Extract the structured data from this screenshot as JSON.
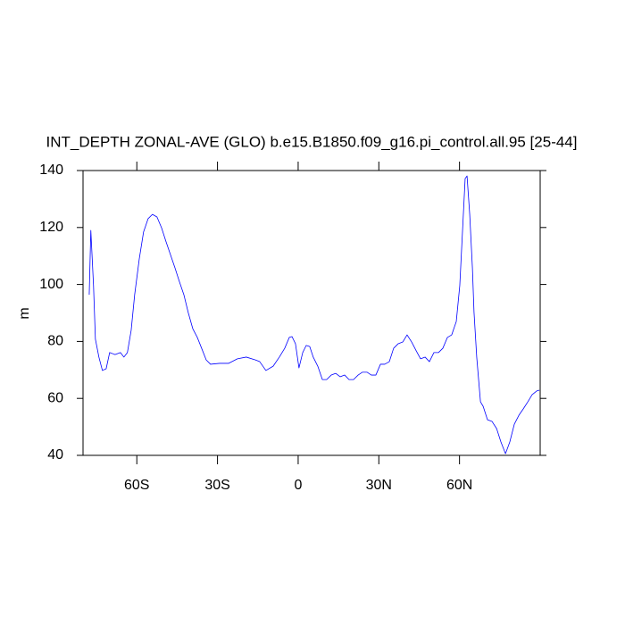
{
  "chart_data": {
    "type": "line",
    "title": "INT_DEPTH ZONAL-AVE (GLO) b.e15.B1850.f09_g16.pi_control.all.95 [25-44]",
    "y_label": "m",
    "x": [
      -77.7,
      -77.1,
      -76.1,
      -75.4,
      -74.1,
      -72.8,
      -71.4,
      -70.1,
      -68.1,
      -66.1,
      -64.8,
      -63.5,
      -62.1,
      -60.8,
      -59.1,
      -57.5,
      -55.8,
      -54.2,
      -52.5,
      -50.8,
      -49.2,
      -47.5,
      -45.8,
      -44.2,
      -42.5,
      -40.9,
      -39.2,
      -37.5,
      -35.9,
      -34.2,
      -32.6,
      -29.2,
      -25.9,
      -22.6,
      -19.3,
      -15.9,
      -14.3,
      -12.0,
      -9.3,
      -7.0,
      -5.0,
      -3.3,
      -2.3,
      -1.0,
      0.3,
      1.7,
      3.0,
      4.3,
      5.6,
      7.3,
      9.0,
      10.6,
      12.3,
      14.0,
      15.6,
      17.3,
      18.9,
      20.6,
      22.3,
      23.9,
      25.6,
      27.2,
      28.9,
      30.6,
      32.2,
      33.9,
      35.5,
      37.2,
      38.9,
      40.5,
      42.2,
      43.9,
      45.5,
      47.2,
      48.8,
      50.5,
      52.2,
      53.8,
      55.5,
      57.1,
      58.8,
      60.1,
      61.1,
      62.1,
      62.8,
      63.8,
      64.8,
      65.4,
      66.4,
      67.8,
      68.8,
      70.4,
      72.1,
      73.8,
      75.4,
      77.1,
      78.7,
      80.4,
      82.1,
      83.7,
      85.4,
      87.0,
      88.7,
      89.7
    ],
    "series": [
      {
        "name": "INT_DEPTH",
        "color": "#0000ff",
        "values": [
          96.4,
          119.0,
          99.6,
          80.8,
          74.5,
          69.8,
          70.4,
          76.1,
          75.4,
          76.1,
          74.5,
          76.1,
          83.9,
          96.4,
          108.9,
          118.4,
          123.1,
          124.6,
          123.7,
          119.9,
          115.2,
          110.5,
          105.8,
          101.1,
          96.4,
          90.2,
          84.5,
          81.4,
          77.6,
          73.5,
          72.0,
          72.3,
          72.3,
          73.9,
          74.5,
          73.5,
          72.9,
          69.8,
          71.3,
          74.5,
          77.6,
          81.4,
          81.7,
          79.2,
          70.7,
          76.1,
          78.6,
          78.2,
          74.5,
          71.3,
          66.6,
          66.6,
          68.2,
          68.8,
          67.6,
          68.2,
          66.6,
          66.6,
          68.2,
          69.2,
          69.2,
          68.2,
          68.2,
          72.0,
          72.0,
          72.9,
          77.6,
          79.2,
          79.8,
          82.3,
          79.8,
          76.7,
          73.9,
          74.5,
          72.9,
          76.1,
          76.1,
          77.6,
          81.4,
          82.3,
          87.0,
          99.6,
          118.4,
          137.2,
          138.1,
          124.6,
          105.8,
          90.2,
          74.5,
          58.8,
          57.2,
          52.5,
          51.9,
          49.4,
          44.7,
          40.6,
          44.7,
          51.0,
          54.1,
          56.3,
          58.8,
          61.3,
          62.6,
          62.9
        ]
      }
    ],
    "xlim": [
      -80,
      90
    ],
    "xticks": [
      {
        "value": -60,
        "label": "60S"
      },
      {
        "value": -30,
        "label": "30S"
      },
      0,
      {
        "value": 30,
        "label": "30N"
      },
      {
        "value": 60,
        "label": "60N"
      }
    ],
    "ylim": [
      40,
      140
    ],
    "yticks": [
      40,
      60,
      80,
      100,
      120,
      140
    ]
  }
}
